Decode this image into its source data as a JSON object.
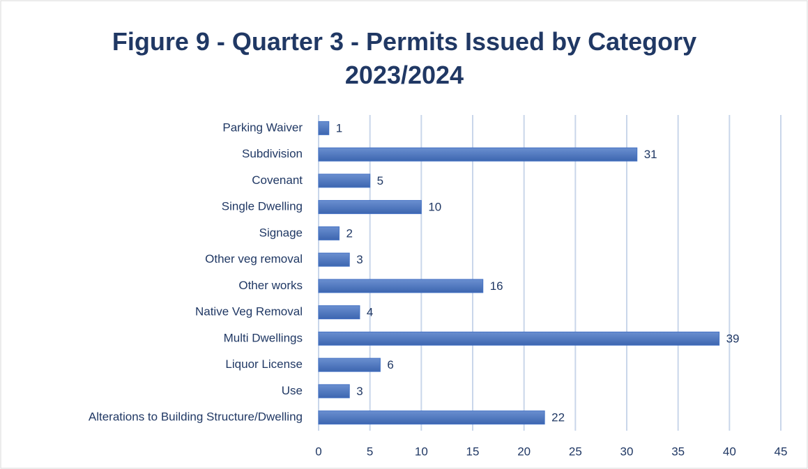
{
  "chart_data": {
    "type": "bar",
    "orientation": "horizontal",
    "title": "Figure 9 - Quarter 3 - Permits Issued by Category 2023/2024",
    "categories": [
      "Parking Waiver",
      "Subdivision",
      "Covenant",
      "Single Dwelling",
      "Signage",
      "Other veg removal",
      "Other works",
      "Native Veg Removal",
      "Multi Dwellings",
      "Liquor License",
      "Use",
      "Alterations to Building Structure/Dwelling"
    ],
    "values": [
      1,
      31,
      5,
      10,
      2,
      3,
      16,
      4,
      39,
      6,
      3,
      22
    ],
    "color": "#4472c4",
    "xlim": [
      0,
      45
    ],
    "xticks": [
      0,
      5,
      10,
      15,
      20,
      25,
      30,
      35,
      40,
      45
    ],
    "grid": true
  }
}
